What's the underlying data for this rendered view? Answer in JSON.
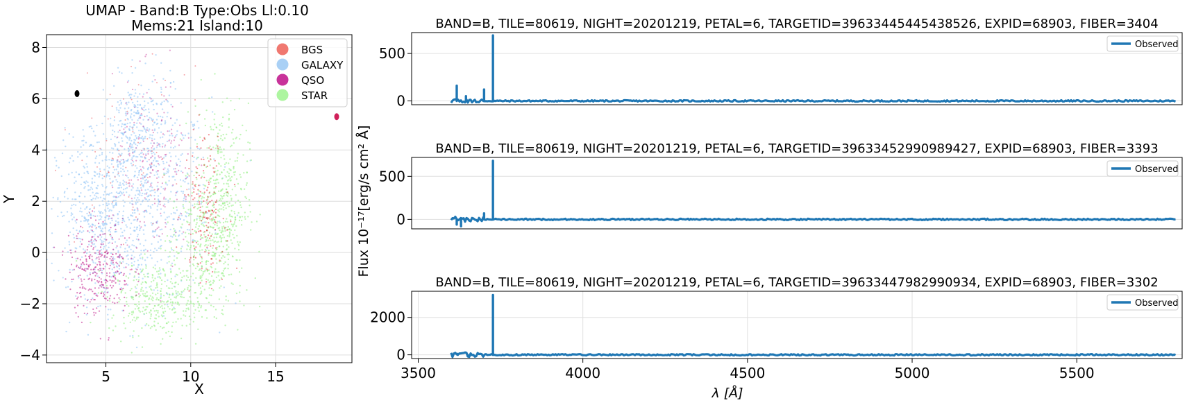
{
  "chart_data": [
    {
      "type": "scatter",
      "title_line1": "UMAP  -  Band:B Type:Obs Ll:0.10",
      "title_line2": "Mems:21 Island:10",
      "xlabel": "X",
      "ylabel": "Y",
      "xlim": [
        1.5,
        19.5
      ],
      "ylim": [
        -4.3,
        8.5
      ],
      "xticks": [
        "5",
        "10",
        "15"
      ],
      "xtick_values": [
        5,
        10,
        15
      ],
      "yticks": [
        "−4",
        "−2",
        "0",
        "2",
        "4",
        "6",
        "8"
      ],
      "ytick_values": [
        -4,
        -2,
        0,
        2,
        4,
        6,
        8
      ],
      "grid": true,
      "legend_position": "top-right",
      "series": [
        {
          "name": "BGS",
          "color": "#f07870"
        },
        {
          "name": "GALAXY",
          "color": "#a9d0f5"
        },
        {
          "name": "QSO",
          "color": "#c8339a"
        },
        {
          "name": "STAR",
          "color": "#adf5a0"
        }
      ],
      "special_points": [
        {
          "x": 3.3,
          "y": 6.2,
          "color": "#000000",
          "note_hidden": true
        },
        {
          "x": 18.6,
          "y": 5.3,
          "color": "#d0205a",
          "note_hidden": true
        }
      ]
    },
    {
      "type": "line",
      "title": "BAND=B, TILE=80619, NIGHT=20201219, PETAL=6, TARGETID=39633445445438526, EXPID=68903, FIBER=3404",
      "legend": "Observed",
      "xlim": [
        3480,
        5820
      ],
      "ylim": [
        -40,
        720
      ],
      "yticks": [
        "0",
        "500"
      ],
      "ytick_values": [
        0,
        500
      ],
      "peaks": [
        [
          3617,
          160
        ],
        [
          3645,
          50
        ],
        [
          3700,
          120
        ],
        [
          3727,
          690
        ]
      ]
    },
    {
      "type": "line",
      "title": "BAND=B, TILE=80619, NIGHT=20201219, PETAL=6, TARGETID=39633452990989427, EXPID=68903, FIBER=3393",
      "legend": "Observed",
      "xlim": [
        3480,
        5820
      ],
      "ylim": [
        -110,
        720
      ],
      "yticks": [
        "0",
        "500"
      ],
      "ytick_values": [
        0,
        500
      ],
      "peaks": [
        [
          3617,
          -60
        ],
        [
          3630,
          -80
        ],
        [
          3700,
          70
        ],
        [
          3727,
          680
        ]
      ]
    },
    {
      "type": "line",
      "title": "BAND=B, TILE=80619, NIGHT=20201219, PETAL=6, TARGETID=39633447982990934, EXPID=68903, FIBER=3302",
      "legend": "Observed",
      "xlim": [
        3480,
        5820
      ],
      "ylim": [
        -200,
        3400
      ],
      "yticks": [
        "0",
        "2000"
      ],
      "ytick_values": [
        0,
        2000
      ],
      "xticks": [
        "3500",
        "4000",
        "4500",
        "5000",
        "5500"
      ],
      "xtick_values": [
        3500,
        4000,
        4500,
        5000,
        5500
      ],
      "xlabel": "λ [Å]",
      "peaks": [
        [
          3620,
          50
        ],
        [
          3650,
          -60
        ],
        [
          3727,
          3200
        ]
      ]
    }
  ],
  "shared_ylabel": "Flux 10⁻¹⁷[erg/s cm² Å]"
}
